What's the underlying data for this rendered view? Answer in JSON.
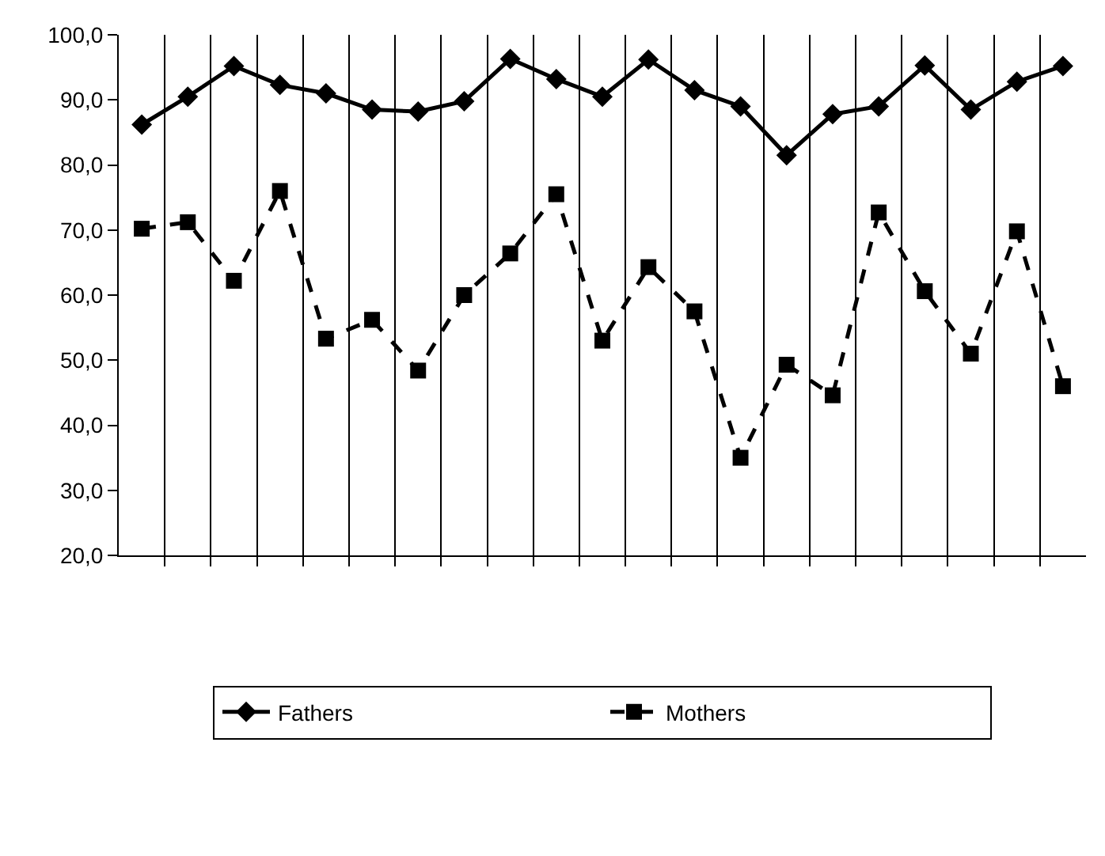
{
  "chart_data": {
    "type": "line",
    "categories": [
      null,
      null,
      null,
      null,
      null,
      null,
      null,
      null,
      null,
      null,
      null,
      null,
      null,
      null,
      null,
      null,
      null,
      null,
      null,
      null,
      null
    ],
    "series": [
      {
        "name": "Fathers",
        "color": "#000000",
        "marker": "diamond",
        "line_style": "solid",
        "values": [
          86.2,
          90.5,
          95.2,
          92.3,
          91.0,
          88.5,
          88.2,
          89.8,
          96.3,
          93.2,
          90.5,
          96.2,
          91.5,
          89.0,
          81.5,
          87.8,
          89.0,
          95.3,
          88.5,
          92.8,
          95.2
        ]
      },
      {
        "name": "Mothers",
        "color": "#000000",
        "marker": "square",
        "line_style": "dashed",
        "values": [
          70.2,
          71.2,
          62.2,
          76.0,
          53.3,
          56.2,
          48.4,
          60.0,
          66.4,
          75.5,
          53.0,
          64.3,
          57.5,
          35.0,
          49.3,
          44.6,
          72.7,
          60.6,
          51.0,
          69.8,
          46.0
        ]
      }
    ],
    "ylim": [
      20,
      100
    ],
    "yticks": [
      {
        "value": 20,
        "label": "20,0"
      },
      {
        "value": 30,
        "label": "30,0"
      },
      {
        "value": 40,
        "label": "40,0"
      },
      {
        "value": 50,
        "label": "50,0"
      },
      {
        "value": 60,
        "label": "60,0"
      },
      {
        "value": 70,
        "label": "70,0"
      },
      {
        "value": 80,
        "label": "80,0"
      },
      {
        "value": 90,
        "label": "90,0"
      },
      {
        "value": 100,
        "label": "100,0"
      }
    ],
    "grid": "x",
    "legend": "bottom"
  }
}
